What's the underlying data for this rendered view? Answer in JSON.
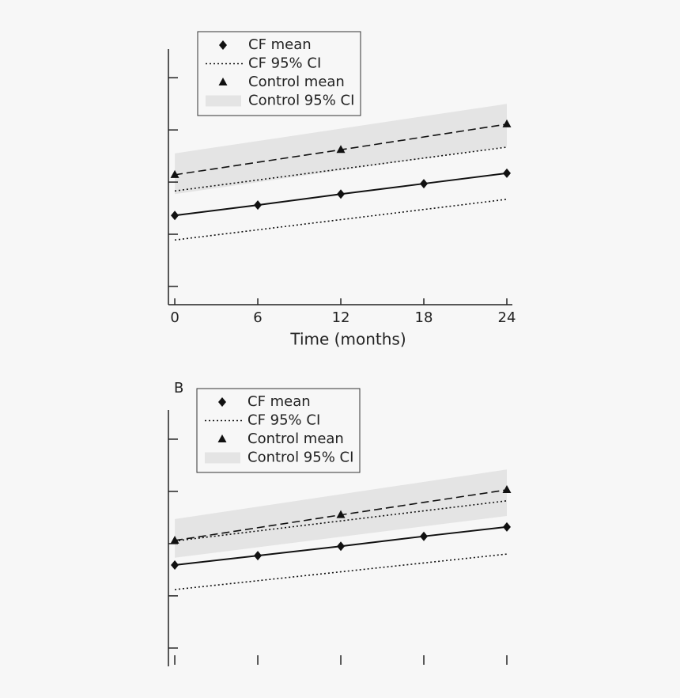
{
  "chart_data": [
    {
      "type": "line",
      "x_label": "Time (months)",
      "xlim": [
        -0.46,
        24.4
      ],
      "xticks": [
        0,
        6,
        12,
        18,
        24
      ],
      "x_tick_labels": true,
      "x_axis_line": true,
      "ylim": [
        -0.35,
        4.55
      ],
      "yticks": [
        0,
        1,
        2,
        3,
        4
      ],
      "legend": "top",
      "series": [
        {
          "name": "CF mean",
          "color": "#111111",
          "style": "solid",
          "marker": "diamond",
          "x": [
            0,
            6,
            12,
            18,
            24
          ],
          "values": [
            1.36,
            1.56,
            1.77,
            1.97,
            2.17
          ]
        },
        {
          "name": "CF 95% CI",
          "color": "#111111",
          "style": "dotted",
          "x": [
            0,
            24
          ],
          "lower": [
            0.89,
            1.67
          ],
          "upper": [
            1.83,
            2.67
          ]
        },
        {
          "name": "Control mean",
          "color": "#111111",
          "style": "dashed",
          "marker": "triangle",
          "x": [
            0,
            12,
            24
          ],
          "values": [
            2.14,
            2.62,
            3.11
          ]
        },
        {
          "name": "Control 95% CI",
          "color": "#e4e4e4",
          "style": "band",
          "x": [
            0,
            24
          ],
          "lower": [
            1.77,
            2.68
          ],
          "upper": [
            2.55,
            3.5
          ]
        }
      ]
    },
    {
      "type": "line",
      "label": "B",
      "xlim": [
        -0.46,
        24.4
      ],
      "xticks": [
        0,
        6,
        12,
        18,
        24
      ],
      "x_tick_labels": false,
      "x_axis_line": false,
      "ylim": [
        -0.35,
        4.56
      ],
      "yticks": [
        0,
        1,
        2,
        3,
        4
      ],
      "legend": "top",
      "series": [
        {
          "name": "CF mean",
          "color": "#111111",
          "style": "solid",
          "marker": "diamond",
          "x": [
            0,
            6,
            12,
            18,
            24
          ],
          "values": [
            1.59,
            1.77,
            1.95,
            2.14,
            2.32
          ]
        },
        {
          "name": "CF 95% CI",
          "color": "#111111",
          "style": "dotted",
          "x": [
            0,
            24
          ],
          "lower": [
            1.12,
            1.8
          ],
          "upper": [
            2.05,
            2.82
          ]
        },
        {
          "name": "Control mean",
          "color": "#111111",
          "style": "dashed",
          "marker": "triangle",
          "x": [
            0,
            12,
            24
          ],
          "values": [
            2.06,
            2.55,
            3.03
          ]
        },
        {
          "name": "Control 95% CI",
          "color": "#e4e4e4",
          "style": "band",
          "x": [
            0,
            24
          ],
          "lower": [
            1.73,
            2.53
          ],
          "upper": [
            2.47,
            3.42
          ]
        }
      ]
    }
  ]
}
